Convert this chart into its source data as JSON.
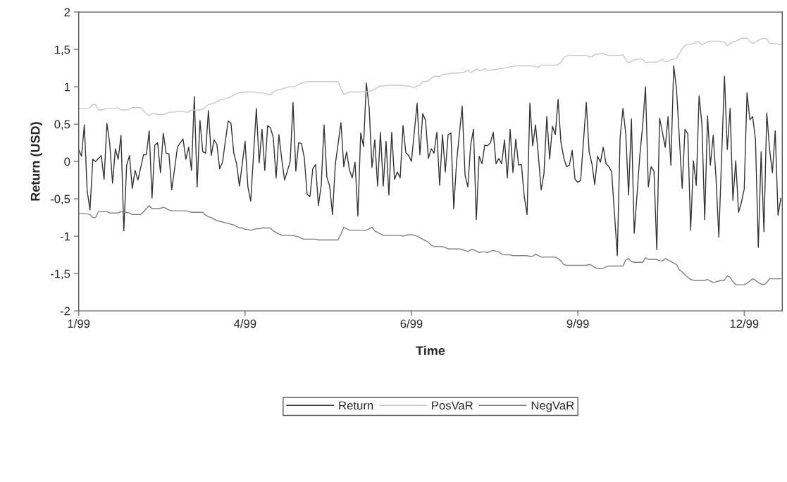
{
  "chart_data": {
    "type": "line",
    "xlabel": "Time",
    "ylabel": "Return (USD)",
    "categories": [
      "1/99",
      null,
      null,
      null,
      null,
      null,
      null,
      null,
      null,
      null,
      null,
      null,
      null,
      null,
      null,
      null,
      null,
      null,
      null,
      null,
      null,
      null,
      null,
      null,
      null,
      null,
      null,
      null,
      null,
      null,
      null,
      null,
      null,
      null,
      null,
      null,
      null,
      null,
      null,
      null,
      null,
      null,
      null,
      null,
      null,
      null,
      null,
      null,
      null,
      null,
      null,
      null,
      null,
      null,
      null,
      null,
      null,
      null,
      null,
      "4/99",
      null,
      null,
      null,
      null,
      null,
      null,
      null,
      null,
      null,
      null,
      null,
      null,
      null,
      null,
      null,
      null,
      null,
      null,
      null,
      null,
      null,
      null,
      null,
      null,
      null,
      null,
      null,
      null,
      null,
      null,
      null,
      null,
      null,
      null,
      null,
      null,
      null,
      null,
      null,
      null,
      null,
      null,
      null,
      null,
      null,
      null,
      null,
      null,
      null,
      null,
      null,
      null,
      null,
      null,
      null,
      null,
      null,
      null,
      "6/99",
      null,
      null,
      null,
      null,
      null,
      null,
      null,
      null,
      null,
      null,
      null,
      null,
      null,
      null,
      null,
      null,
      null,
      null,
      null,
      null,
      null,
      null,
      null,
      null,
      null,
      null,
      null,
      null,
      null,
      null,
      null,
      null,
      null,
      null,
      null,
      null,
      null,
      null,
      null,
      null,
      null,
      null,
      null,
      null,
      null,
      null,
      null,
      null,
      null,
      null,
      null,
      null,
      null,
      null,
      null,
      null,
      null,
      null,
      "9/99",
      null,
      null,
      null,
      null,
      null,
      null,
      null,
      null,
      null,
      null,
      null,
      null,
      null,
      null,
      null,
      null,
      null,
      null,
      null,
      null,
      null,
      null,
      null,
      null,
      null,
      null,
      null,
      null,
      null,
      null,
      null,
      null,
      null,
      null,
      null,
      null,
      null,
      null,
      null,
      null,
      null,
      null,
      null,
      null,
      null,
      null,
      null,
      null,
      null,
      null,
      null,
      null,
      null,
      null,
      null,
      null,
      null,
      null,
      "12/99",
      null,
      null,
      null,
      null,
      null,
      null,
      null,
      null,
      null,
      null,
      null,
      null,
      null
    ],
    "ylim": [
      -2,
      2
    ],
    "yticks": [
      {
        "value": -2,
        "label": "-2"
      },
      {
        "value": -1.5,
        "label": "-1,5"
      },
      {
        "value": -1,
        "label": "-1"
      },
      {
        "value": -0.5,
        "label": "-0,5"
      },
      {
        "value": 0,
        "label": "0"
      },
      {
        "value": 0.5,
        "label": "0,5"
      },
      {
        "value": 1,
        "label": "1"
      },
      {
        "value": 1.5,
        "label": "1,5"
      },
      {
        "value": 2,
        "label": "2"
      }
    ],
    "legend": "bottom",
    "line_style": "solid",
    "series": [
      {
        "name": "Return",
        "color": "#333333",
        "values": [
          0.16,
          0.07,
          0.49,
          -0.39,
          -0.65,
          0.03,
          0,
          0.04,
          0.08,
          -0.24,
          0.51,
          0.24,
          -0.29,
          0.17,
          0.03,
          0.35,
          -0.93,
          -0.05,
          0.08,
          -0.36,
          -0.12,
          -0.25,
          -0.08,
          0.09,
          0.09,
          0.41,
          -0.49,
          0.22,
          0.25,
          -0.15,
          0.38,
          0.11,
          0.1,
          -0.38,
          -0.1,
          0.19,
          0.25,
          0.3,
          0.03,
          0.19,
          -0.12,
          0.87,
          -0.34,
          0.55,
          0.13,
          0.11,
          0.68,
          0.08,
          0.29,
          0.23,
          -0.1,
          -0.01,
          0.27,
          0.54,
          0.51,
          0.11,
          -0.03,
          -0.33,
          -0.03,
          0.27,
          -0.34,
          -0.53,
          0.09,
          0.71,
          -0.02,
          0.43,
          -0.12,
          0.48,
          0.45,
          0.32,
          -0.22,
          0.36,
          0.03,
          -0.25,
          -0.13,
          0,
          0.79,
          -0.13,
          0.25,
          0.24,
          0.05,
          -0.44,
          -0.47,
          -0.1,
          -0.04,
          -0.59,
          -0.32,
          0.49,
          -0.21,
          -0.33,
          -0.71,
          -0.04,
          0.24,
          0.52,
          -0.07,
          0.13,
          -0.11,
          -0.22,
          -0.01,
          -0.73,
          0.38,
          0.2,
          1.05,
          0.72,
          -0.08,
          0.29,
          -0.33,
          0.39,
          -0.33,
          0.27,
          -0.45,
          0.39,
          -0.24,
          -0.14,
          -0.22,
          0.48,
          0.12,
          0.08,
          0,
          0.39,
          0.78,
          0.09,
          0.64,
          0.55,
          0.04,
          0.17,
          0.11,
          0.39,
          -0.32,
          0.36,
          -0.14,
          0.36,
          0.38,
          -0.63,
          -0.01,
          0.37,
          0.74,
          -0.18,
          -0.34,
          0.22,
          0.43,
          -0.78,
          0.07,
          -0.03,
          0.22,
          0.21,
          0.25,
          0.39,
          -0.03,
          0.04,
          -0.03,
          0.29,
          -0.22,
          0.43,
          -0.15,
          0.3,
          -0.05,
          -0.04,
          -0.47,
          -0.71,
          0.78,
          0.21,
          0.49,
          0.08,
          -0.38,
          -0.16,
          0.6,
          0.03,
          0.47,
          0.36,
          0.83,
          0.26,
          0.05,
          -0.07,
          -0.05,
          0.15,
          -0.24,
          -0.28,
          -0.25,
          0.27,
          0.79,
          0.13,
          -0.03,
          -0.31,
          0.07,
          -0.01,
          0.19,
          -0.03,
          -0.07,
          -0.14,
          -0.7,
          -1.26,
          0.32,
          0.71,
          0.37,
          -0.45,
          0.57,
          -0.96,
          -0.44,
          0.09,
          0.48,
          1.0,
          -0.34,
          -0.07,
          -0.13,
          -1.18,
          0.58,
          0.39,
          0.19,
          0.6,
          -0.05,
          1.28,
          0.97,
          0.31,
          -0.36,
          0.43,
          0.37,
          -0.92,
          0.01,
          -0.32,
          0.88,
          0.5,
          -0.78,
          0.61,
          -0.05,
          0.35,
          -0.22,
          -1.01,
          0.07,
          1.14,
          0.16,
          0.71,
          -0.52,
          0.01,
          -0.68,
          -0.55,
          -0.37,
          0.92,
          0.56,
          0.6,
          0.29,
          -1.15,
          0.13,
          -0.94,
          0.65,
          0.16,
          -0.15,
          0.41,
          -0.72,
          -0.49
        ]
      },
      {
        "name": "PosVaR",
        "color": "#c8c8c8",
        "values": [
          0.71,
          0.71,
          0.71,
          0.71,
          0.72,
          0.76,
          0.76,
          0.69,
          0.69,
          0.7,
          0.71,
          0.71,
          0.71,
          0.71,
          0.72,
          0.69,
          0.69,
          0.69,
          0.7,
          0.72,
          0.72,
          0.72,
          0.72,
          0.68,
          0.64,
          0.61,
          0.64,
          0.64,
          0.63,
          0.63,
          0.63,
          0.64,
          0.66,
          0.66,
          0.66,
          0.67,
          0.67,
          0.67,
          0.66,
          0.66,
          0.69,
          0.69,
          0.69,
          0.69,
          0.7,
          0.73,
          0.76,
          0.77,
          0.78,
          0.8,
          0.82,
          0.83,
          0.84,
          0.85,
          0.87,
          0.89,
          0.91,
          0.92,
          0.92,
          0.93,
          0.93,
          0.93,
          0.93,
          0.92,
          0.92,
          0.92,
          0.91,
          0.9,
          0.89,
          0.93,
          0.95,
          0.96,
          0.97,
          0.98,
          0.99,
          1.0,
          1.0,
          1.01,
          1.03,
          1.05,
          1.06,
          1.07,
          1.07,
          1.07,
          1.07,
          1.07,
          1.07,
          1.07,
          1.07,
          1.07,
          1.07,
          1.07,
          1.07,
          0.98,
          0.9,
          0.91,
          0.93,
          0.93,
          0.93,
          0.93,
          0.93,
          0.93,
          0.93,
          0.94,
          0.95,
          0.97,
          0.99,
          1.01,
          1.01,
          1.02,
          1.02,
          1.02,
          1.02,
          1.02,
          1.02,
          1.02,
          1.01,
          1.01,
          1.0,
          0.99,
          1.01,
          1.02,
          1.07,
          1.07,
          1.08,
          1.11,
          1.14,
          1.14,
          1.14,
          1.16,
          1.17,
          1.17,
          1.18,
          1.18,
          1.18,
          1.19,
          1.19,
          1.2,
          1.22,
          1.19,
          1.21,
          1.24,
          1.22,
          1.22,
          1.24,
          1.22,
          1.22,
          1.23,
          1.23,
          1.24,
          1.24,
          1.25,
          1.26,
          1.27,
          1.27,
          1.28,
          1.28,
          1.28,
          1.28,
          1.28,
          1.28,
          1.28,
          1.27,
          1.26,
          1.29,
          1.29,
          1.29,
          1.29,
          1.29,
          1.29,
          1.3,
          1.33,
          1.39,
          1.41,
          1.42,
          1.42,
          1.42,
          1.42,
          1.42,
          1.42,
          1.42,
          1.4,
          1.4,
          1.43,
          1.44,
          1.44,
          1.45,
          1.43,
          1.42,
          1.42,
          1.42,
          1.42,
          1.42,
          1.43,
          1.36,
          1.32,
          1.34,
          1.36,
          1.37,
          1.37,
          1.37,
          1.32,
          1.33,
          1.33,
          1.33,
          1.33,
          1.35,
          1.37,
          1.33,
          1.34,
          1.36,
          1.37,
          1.38,
          1.44,
          1.51,
          1.55,
          1.57,
          1.57,
          1.58,
          1.6,
          1.6,
          1.56,
          1.58,
          1.6,
          1.61,
          1.61,
          1.61,
          1.61,
          1.6,
          1.6,
          1.55,
          1.58,
          1.6,
          1.61,
          1.63,
          1.65,
          1.65,
          1.65,
          1.61,
          1.58,
          1.6,
          1.62,
          1.64,
          1.65,
          1.64,
          1.58,
          1.58,
          1.58,
          1.57,
          1.57
        ]
      },
      {
        "name": "NegVaR",
        "color": "#808080",
        "values": [
          -0.7,
          -0.7,
          -0.7,
          -0.7,
          -0.71,
          -0.75,
          -0.75,
          -0.67,
          -0.67,
          -0.67,
          -0.67,
          -0.69,
          -0.69,
          -0.69,
          -0.69,
          -0.67,
          -0.68,
          -0.68,
          -0.69,
          -0.71,
          -0.71,
          -0.71,
          -0.71,
          -0.67,
          -0.63,
          -0.59,
          -0.63,
          -0.63,
          -0.63,
          -0.63,
          -0.61,
          -0.63,
          -0.65,
          -0.66,
          -0.66,
          -0.66,
          -0.66,
          -0.66,
          -0.66,
          -0.67,
          -0.68,
          -0.68,
          -0.68,
          -0.68,
          -0.68,
          -0.72,
          -0.74,
          -0.75,
          -0.77,
          -0.79,
          -0.8,
          -0.81,
          -0.82,
          -0.83,
          -0.84,
          -0.85,
          -0.87,
          -0.89,
          -0.89,
          -0.91,
          -0.91,
          -0.92,
          -0.91,
          -0.9,
          -0.9,
          -0.89,
          -0.89,
          -0.89,
          -0.89,
          -0.93,
          -0.95,
          -0.97,
          -0.99,
          -0.99,
          -0.99,
          -0.99,
          -0.99,
          -1.0,
          -1.01,
          -1.03,
          -1.04,
          -1.04,
          -1.04,
          -1.04,
          -1.04,
          -1.05,
          -1.05,
          -1.05,
          -1.05,
          -1.05,
          -1.05,
          -1.05,
          -1.05,
          -0.97,
          -0.88,
          -0.9,
          -0.92,
          -0.92,
          -0.92,
          -0.92,
          -0.92,
          -0.92,
          -0.92,
          -0.9,
          -0.88,
          -0.93,
          -0.95,
          -0.97,
          -0.99,
          -0.99,
          -0.99,
          -0.99,
          -0.99,
          -0.99,
          -0.99,
          -1.0,
          -0.99,
          -0.98,
          -0.98,
          -0.99,
          -1.0,
          -1.02,
          -1.04,
          -1.06,
          -1.08,
          -1.12,
          -1.14,
          -1.14,
          -1.14,
          -1.14,
          -1.15,
          -1.17,
          -1.17,
          -1.17,
          -1.17,
          -1.17,
          -1.18,
          -1.19,
          -1.21,
          -1.18,
          -1.18,
          -1.2,
          -1.22,
          -1.21,
          -1.21,
          -1.22,
          -1.2,
          -1.19,
          -1.2,
          -1.21,
          -1.24,
          -1.25,
          -1.25,
          -1.25,
          -1.26,
          -1.26,
          -1.26,
          -1.26,
          -1.26,
          -1.26,
          -1.27,
          -1.27,
          -1.24,
          -1.26,
          -1.28,
          -1.28,
          -1.28,
          -1.28,
          -1.28,
          -1.28,
          -1.3,
          -1.33,
          -1.38,
          -1.39,
          -1.39,
          -1.39,
          -1.39,
          -1.39,
          -1.39,
          -1.39,
          -1.39,
          -1.38,
          -1.39,
          -1.42,
          -1.43,
          -1.43,
          -1.43,
          -1.41,
          -1.4,
          -1.4,
          -1.4,
          -1.4,
          -1.4,
          -1.4,
          -1.32,
          -1.3,
          -1.34,
          -1.35,
          -1.35,
          -1.35,
          -1.35,
          -1.29,
          -1.31,
          -1.31,
          -1.31,
          -1.31,
          -1.33,
          -1.33,
          -1.3,
          -1.32,
          -1.34,
          -1.36,
          -1.38,
          -1.45,
          -1.48,
          -1.52,
          -1.55,
          -1.58,
          -1.59,
          -1.59,
          -1.59,
          -1.59,
          -1.59,
          -1.58,
          -1.6,
          -1.62,
          -1.61,
          -1.6,
          -1.59,
          -1.59,
          -1.53,
          -1.55,
          -1.61,
          -1.65,
          -1.65,
          -1.65,
          -1.65,
          -1.63,
          -1.6,
          -1.57,
          -1.59,
          -1.62,
          -1.64,
          -1.65,
          -1.62,
          -1.57,
          -1.57,
          -1.57,
          -1.57,
          -1.57
        ]
      }
    ]
  }
}
